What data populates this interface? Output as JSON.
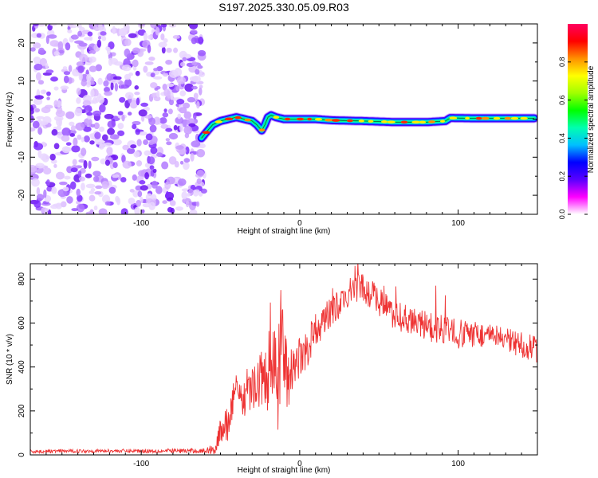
{
  "title": "S197.2025.330.05.09.R03",
  "chart_data": [
    {
      "type": "heatmap",
      "title": "",
      "xlabel": "Height of straight line (km)",
      "ylabel": "Frequency (Hz)",
      "xlim": [
        -170,
        150
      ],
      "ylim": [
        -25,
        25
      ],
      "x_ticks": [
        -100,
        0,
        100
      ],
      "y_ticks": [
        -20,
        -10,
        0,
        10,
        20
      ],
      "noise_region": {
        "x_range": [
          -170,
          -60
        ],
        "y_range": [
          -25,
          25
        ]
      },
      "ridge": {
        "x": [
          -62,
          -58,
          -55,
          -50,
          -45,
          -40,
          -35,
          -30,
          -27,
          -24,
          -22,
          -20,
          -18,
          -15,
          -10,
          -5,
          0,
          10,
          20,
          40,
          60,
          80,
          92,
          95,
          110,
          130,
          148
        ],
        "y": [
          -5,
          -3,
          -1.5,
          -0.5,
          0,
          0.5,
          0,
          -0.5,
          -1.5,
          -3,
          -1.5,
          0.5,
          1,
          0.5,
          0,
          0,
          0,
          0,
          -0.3,
          -0.5,
          -0.8,
          -0.8,
          -0.5,
          0.3,
          0.2,
          0.2,
          0.2
        ]
      },
      "colorbar": {
        "label": "Normalized spectral amplitude",
        "range": [
          0,
          1
        ],
        "ticks": [
          0.0,
          0.2,
          0.4,
          0.6,
          0.8
        ],
        "colors": [
          "#ffffff",
          "#ff00ff",
          "#5a00ff",
          "#0000ff",
          "#00bfff",
          "#00ffb0",
          "#00ff00",
          "#a0ff00",
          "#ffff00",
          "#ff9000",
          "#ff0000",
          "#ff0060"
        ]
      }
    },
    {
      "type": "line",
      "title": "",
      "xlabel": "Height of straight line (km)",
      "ylabel": "SNR (10 * v/v)",
      "xlim": [
        -170,
        150
      ],
      "ylim": [
        0,
        870
      ],
      "x_ticks": [
        -100,
        0,
        100
      ],
      "y_ticks": [
        0,
        200,
        400,
        600,
        800
      ],
      "series": [
        {
          "name": "SNR",
          "color": "#ee3333",
          "x": [
            -170,
            -150,
            -120,
            -90,
            -60,
            -53,
            -50,
            -47,
            -45,
            -43,
            -40,
            -35,
            -30,
            -25,
            -20,
            -16,
            -14,
            -12,
            -10,
            -8,
            -6,
            -4,
            -2,
            0,
            5,
            10,
            20,
            30,
            35,
            40,
            50,
            60,
            70,
            80,
            90,
            100,
            110,
            120,
            130,
            140,
            150
          ],
          "y": [
            15,
            17,
            18,
            18,
            18,
            30,
            110,
            150,
            100,
            240,
            290,
            250,
            300,
            340,
            380,
            450,
            330,
            450,
            480,
            350,
            360,
            420,
            430,
            440,
            490,
            570,
            650,
            720,
            760,
            760,
            700,
            640,
            600,
            590,
            570,
            550,
            550,
            540,
            520,
            500,
            480
          ]
        }
      ],
      "noise_amplitude": [
        8,
        8,
        8,
        10,
        12,
        30,
        60,
        80,
        90,
        90,
        80,
        80,
        90,
        120,
        180,
        230,
        260,
        220,
        200,
        150,
        120,
        110,
        100,
        100,
        90,
        80,
        70,
        70,
        70,
        70,
        70,
        70,
        70,
        70,
        70,
        70,
        60,
        60,
        60,
        60,
        60
      ],
      "annotations": [
        {
          "x": -12,
          "y": 750
        },
        {
          "x": 35,
          "y": 860
        },
        {
          "x": 86,
          "y": 770
        }
      ]
    }
  ]
}
